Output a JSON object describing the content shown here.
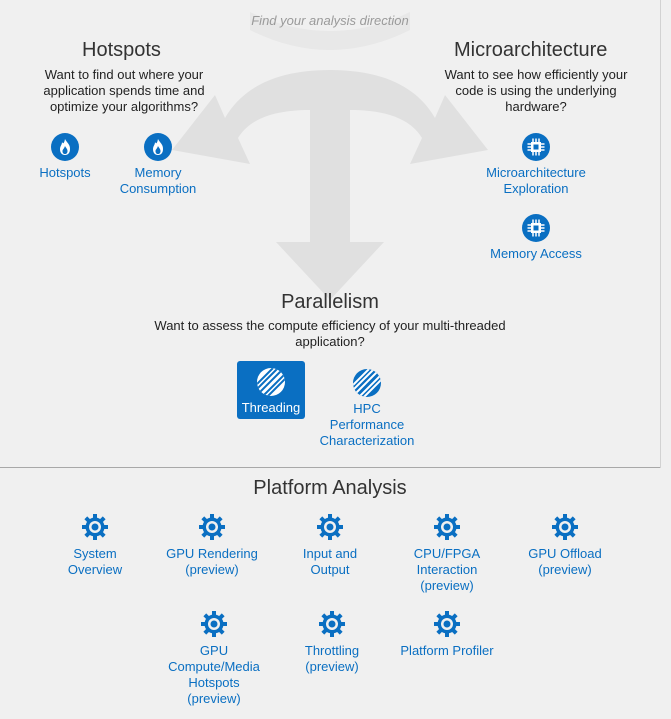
{
  "direction_hint": "Find your analysis direction",
  "hotspots": {
    "title": "Hotspots",
    "description": "Want to find out where your application spends time and optimize your algorithms?",
    "analyses": [
      "Hotspots",
      "Memory Consumption"
    ]
  },
  "microarchitecture": {
    "title": "Microarchitecture",
    "description": "Want to see how efficiently your code is using the underlying hardware?",
    "analyses": [
      "Microarchitecture Exploration",
      "Memory Access"
    ]
  },
  "parallelism": {
    "title": "Parallelism",
    "description": "Want to assess the compute efficiency of your multi-threaded application?",
    "analyses": [
      "Threading",
      "HPC Performance Characterization"
    ],
    "selected": "Threading"
  },
  "platform": {
    "title": "Platform Analysis",
    "analyses": [
      "System Overview",
      "GPU Rendering (preview)",
      "Input and Output",
      "CPU/FPGA Interaction (preview)",
      "GPU Offload (preview)",
      "GPU Compute/Media Hotspots (preview)",
      "Throttling (preview)",
      "Platform Profiler"
    ]
  },
  "colors": {
    "accent": "#0a6fc2",
    "background": "#f0f0f0",
    "arrow": "#e0e0e0",
    "hint_text": "#9a9a9a"
  },
  "icons": {
    "hotspots": "flame-icon",
    "microarchitecture": "chip-icon",
    "parallelism": "stripes-icon",
    "platform": "gear-icon"
  }
}
